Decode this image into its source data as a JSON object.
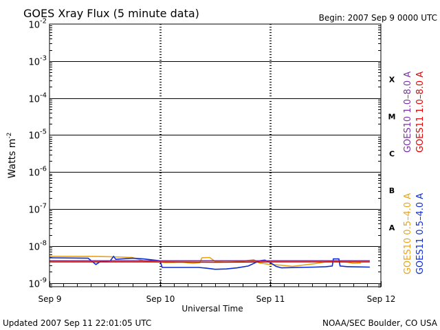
{
  "chart_data": {
    "type": "line",
    "title": "GOES Xray Flux (5 minute data)",
    "begin_label": "Begin:  2007 Sep 9 0000 UTC",
    "ylabel_main": "Watts m",
    "ylabel_exp": "-2",
    "xlabel": "Universal Time",
    "footer_left": "Updated 2007 Sep 11 22:01:05 UTC",
    "footer_right": "NOAA/SEC Boulder, CO USA",
    "x_days": [
      0,
      1,
      2,
      3
    ],
    "x_tick_labels": [
      "Sep 9",
      "Sep 10",
      "Sep 11",
      "Sep 12"
    ],
    "x_unit": "days since 2007 Sep 9 0000 UTC",
    "xlim": [
      0,
      3
    ],
    "y_scale": "log",
    "ylim_exponents": [
      -9.1,
      -2
    ],
    "y_tick_exponents": [
      -2,
      -3,
      -4,
      -5,
      -6,
      -7,
      -8,
      -9
    ],
    "y_tick_base": "10",
    "flare_classes": [
      {
        "label": "X",
        "center_exp": -3.5
      },
      {
        "label": "M",
        "center_exp": -4.5
      },
      {
        "label": "C",
        "center_exp": -5.5
      },
      {
        "label": "B",
        "center_exp": -6.5
      },
      {
        "label": "A",
        "center_exp": -7.5
      }
    ],
    "series": [
      {
        "name": "GOES10 0.5–4.0 A",
        "color": "#e8a317",
        "points": [
          [
            0.0,
            -8.28
          ],
          [
            0.4,
            -8.28
          ],
          [
            0.55,
            -8.29
          ],
          [
            0.75,
            -8.31
          ],
          [
            0.85,
            -8.4
          ],
          [
            1.0,
            -8.44
          ],
          [
            1.05,
            -8.45
          ],
          [
            1.2,
            -8.44
          ],
          [
            1.3,
            -8.47
          ],
          [
            1.36,
            -8.45
          ],
          [
            1.38,
            -8.32
          ],
          [
            1.45,
            -8.31
          ],
          [
            1.5,
            -8.42
          ],
          [
            1.6,
            -8.4
          ],
          [
            1.75,
            -8.41
          ],
          [
            1.85,
            -8.37
          ],
          [
            1.9,
            -8.46
          ],
          [
            2.0,
            -8.5
          ],
          [
            2.1,
            -8.52
          ],
          [
            2.2,
            -8.55
          ],
          [
            2.4,
            -8.48
          ],
          [
            2.5,
            -8.43
          ],
          [
            2.6,
            -8.42
          ],
          [
            2.65,
            -8.43
          ],
          [
            2.7,
            -8.44
          ],
          [
            2.75,
            -8.47
          ],
          [
            2.82,
            -8.46
          ]
        ]
      },
      {
        "name": "GOES11 0.5–4.0 A",
        "color": "#0a2bd6",
        "points": [
          [
            0.0,
            -8.32
          ],
          [
            0.35,
            -8.33
          ],
          [
            0.42,
            -8.5
          ],
          [
            0.46,
            -8.42
          ],
          [
            0.55,
            -8.4
          ],
          [
            0.58,
            -8.28
          ],
          [
            0.6,
            -8.36
          ],
          [
            0.75,
            -8.33
          ],
          [
            0.85,
            -8.35
          ],
          [
            1.0,
            -8.4
          ],
          [
            1.02,
            -8.58
          ],
          [
            1.35,
            -8.58
          ],
          [
            1.42,
            -8.6
          ],
          [
            1.5,
            -8.63
          ],
          [
            1.6,
            -8.62
          ],
          [
            1.7,
            -8.59
          ],
          [
            1.8,
            -8.54
          ],
          [
            1.9,
            -8.4
          ],
          [
            1.95,
            -8.38
          ],
          [
            2.0,
            -8.45
          ],
          [
            2.05,
            -8.55
          ],
          [
            2.1,
            -8.59
          ],
          [
            2.4,
            -8.57
          ],
          [
            2.5,
            -8.56
          ],
          [
            2.56,
            -8.54
          ],
          [
            2.57,
            -8.35
          ],
          [
            2.62,
            -8.35
          ],
          [
            2.63,
            -8.54
          ],
          [
            2.7,
            -8.56
          ],
          [
            2.9,
            -8.57
          ]
        ]
      },
      {
        "name": "GOES10 1.0–8.0 A",
        "color": "#7b2fa8",
        "points": [
          [
            0.0,
            -8.4
          ],
          [
            2.9,
            -8.4
          ]
        ]
      },
      {
        "name": "GOES11 1.0–8.0 A",
        "color": "#e00000",
        "points": [
          [
            0.0,
            -8.43
          ],
          [
            1.0,
            -8.43
          ],
          [
            1.5,
            -8.44
          ],
          [
            2.0,
            -8.43
          ],
          [
            2.9,
            -8.43
          ]
        ]
      }
    ],
    "legend_right": [
      {
        "text": "GOES10 1.0–8.0 A",
        "color": "#7b2fa8"
      },
      {
        "text": "GOES11 1.0–8.0 A",
        "color": "#e00000"
      }
    ],
    "legend_left": [
      {
        "text": "GOES10 0.5–4.0 A",
        "color": "#e8a317"
      },
      {
        "text": "GOES11 0.5–4.0 A",
        "color": "#0a2bd6"
      }
    ]
  }
}
